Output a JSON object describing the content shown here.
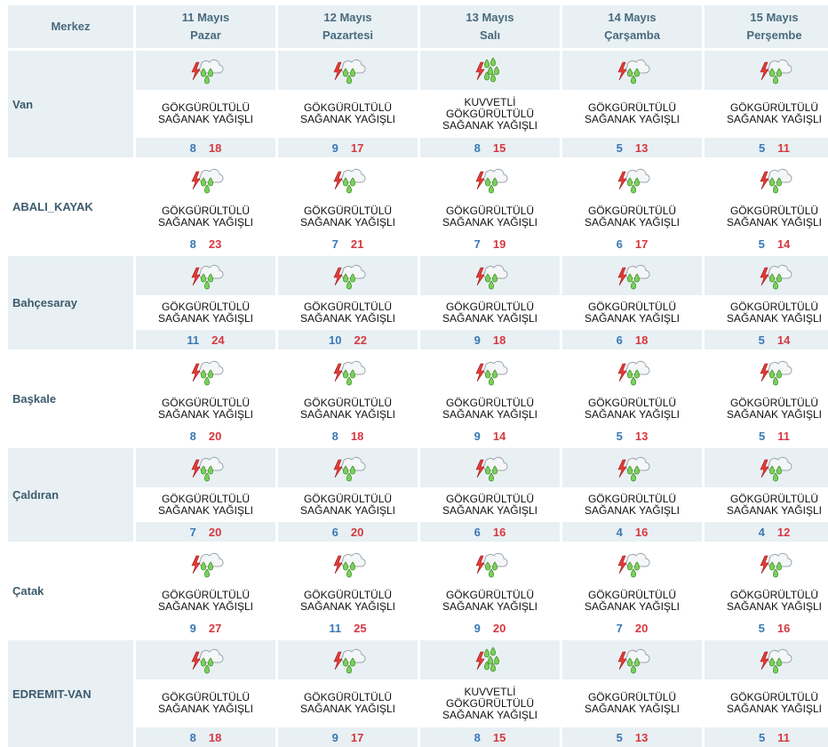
{
  "header": {
    "merkez_label": "Merkez",
    "days": [
      {
        "date": "11 Mayıs",
        "weekday": "Pazar"
      },
      {
        "date": "12 Mayıs",
        "weekday": "Pazartesi"
      },
      {
        "date": "13 Mayıs",
        "weekday": "Salı"
      },
      {
        "date": "14 Mayıs",
        "weekday": "Çarşamba"
      },
      {
        "date": "15 Mayıs",
        "weekday": "Perşembe"
      }
    ]
  },
  "colors": {
    "header_bg": "#e8f0f4",
    "min_temp": "#3a78b5",
    "max_temp": "#d6383f",
    "city_text": "#3d5b6e"
  },
  "rows": [
    {
      "city": "Van",
      "style": "tinted",
      "days": [
        {
          "icon": "thunder-rain-icon",
          "desc": [
            "GÖKGÜRÜLTÜLÜ",
            "SAĞANAK YAĞIŞLI"
          ],
          "min": "8",
          "max": "18"
        },
        {
          "icon": "thunder-rain-icon",
          "desc": [
            "GÖKGÜRÜLTÜLÜ",
            "SAĞANAK YAĞIŞLI"
          ],
          "min": "9",
          "max": "17"
        },
        {
          "icon": "heavy-thunder-rain-icon",
          "desc": [
            "KUVVETLİ",
            "GÖKGÜRÜLTÜLÜ",
            "SAĞANAK YAĞIŞLI"
          ],
          "min": "8",
          "max": "15"
        },
        {
          "icon": "thunder-rain-icon",
          "desc": [
            "GÖKGÜRÜLTÜLÜ",
            "SAĞANAK YAĞIŞLI"
          ],
          "min": "5",
          "max": "13"
        },
        {
          "icon": "thunder-rain-icon",
          "desc": [
            "GÖKGÜRÜLTÜLÜ",
            "SAĞANAK YAĞIŞLI"
          ],
          "min": "5",
          "max": "11"
        }
      ]
    },
    {
      "city": "ABALI_KAYAK",
      "style": "plain",
      "days": [
        {
          "icon": "thunder-rain-icon",
          "desc": [
            "GÖKGÜRÜLTÜLÜ",
            "SAĞANAK YAĞIŞLI"
          ],
          "min": "8",
          "max": "23"
        },
        {
          "icon": "thunder-rain-icon",
          "desc": [
            "GÖKGÜRÜLTÜLÜ",
            "SAĞANAK YAĞIŞLI"
          ],
          "min": "7",
          "max": "21"
        },
        {
          "icon": "thunder-rain-icon",
          "desc": [
            "GÖKGÜRÜLTÜLÜ",
            "SAĞANAK YAĞIŞLI"
          ],
          "min": "7",
          "max": "19"
        },
        {
          "icon": "thunder-rain-icon",
          "desc": [
            "GÖKGÜRÜLTÜLÜ",
            "SAĞANAK YAĞIŞLI"
          ],
          "min": "6",
          "max": "17"
        },
        {
          "icon": "thunder-rain-icon",
          "desc": [
            "GÖKGÜRÜLTÜLÜ",
            "SAĞANAK YAĞIŞLI"
          ],
          "min": "5",
          "max": "14"
        }
      ]
    },
    {
      "city": "Bahçesaray",
      "style": "tinted",
      "days": [
        {
          "icon": "thunder-rain-icon",
          "desc": [
            "GÖKGÜRÜLTÜLÜ",
            "SAĞANAK YAĞIŞLI"
          ],
          "min": "11",
          "max": "24"
        },
        {
          "icon": "thunder-rain-icon",
          "desc": [
            "GÖKGÜRÜLTÜLÜ",
            "SAĞANAK YAĞIŞLI"
          ],
          "min": "10",
          "max": "22"
        },
        {
          "icon": "thunder-rain-icon",
          "desc": [
            "GÖKGÜRÜLTÜLÜ",
            "SAĞANAK YAĞIŞLI"
          ],
          "min": "9",
          "max": "18"
        },
        {
          "icon": "thunder-rain-icon",
          "desc": [
            "GÖKGÜRÜLTÜLÜ",
            "SAĞANAK YAĞIŞLI"
          ],
          "min": "6",
          "max": "18"
        },
        {
          "icon": "thunder-rain-icon",
          "desc": [
            "GÖKGÜRÜLTÜLÜ",
            "SAĞANAK YAĞIŞLI"
          ],
          "min": "5",
          "max": "14"
        }
      ]
    },
    {
      "city": "Başkale",
      "style": "plain",
      "days": [
        {
          "icon": "thunder-rain-icon",
          "desc": [
            "GÖKGÜRÜLTÜLÜ",
            "SAĞANAK YAĞIŞLI"
          ],
          "min": "8",
          "max": "20"
        },
        {
          "icon": "thunder-rain-icon",
          "desc": [
            "GÖKGÜRÜLTÜLÜ",
            "SAĞANAK YAĞIŞLI"
          ],
          "min": "8",
          "max": "18"
        },
        {
          "icon": "thunder-rain-icon",
          "desc": [
            "GÖKGÜRÜLTÜLÜ",
            "SAĞANAK YAĞIŞLI"
          ],
          "min": "9",
          "max": "14"
        },
        {
          "icon": "thunder-rain-icon",
          "desc": [
            "GÖKGÜRÜLTÜLÜ",
            "SAĞANAK YAĞIŞLI"
          ],
          "min": "5",
          "max": "13"
        },
        {
          "icon": "thunder-rain-icon",
          "desc": [
            "GÖKGÜRÜLTÜLÜ",
            "SAĞANAK YAĞIŞLI"
          ],
          "min": "5",
          "max": "11"
        }
      ]
    },
    {
      "city": "Çaldıran",
      "style": "tinted",
      "days": [
        {
          "icon": "thunder-rain-icon",
          "desc": [
            "GÖKGÜRÜLTÜLÜ",
            "SAĞANAK YAĞIŞLI"
          ],
          "min": "7",
          "max": "20"
        },
        {
          "icon": "thunder-rain-icon",
          "desc": [
            "GÖKGÜRÜLTÜLÜ",
            "SAĞANAK YAĞIŞLI"
          ],
          "min": "6",
          "max": "20"
        },
        {
          "icon": "thunder-rain-icon",
          "desc": [
            "GÖKGÜRÜLTÜLÜ",
            "SAĞANAK YAĞIŞLI"
          ],
          "min": "6",
          "max": "16"
        },
        {
          "icon": "thunder-rain-icon",
          "desc": [
            "GÖKGÜRÜLTÜLÜ",
            "SAĞANAK YAĞIŞLI"
          ],
          "min": "4",
          "max": "16"
        },
        {
          "icon": "thunder-rain-icon",
          "desc": [
            "GÖKGÜRÜLTÜLÜ",
            "SAĞANAK YAĞIŞLI"
          ],
          "min": "4",
          "max": "12"
        }
      ]
    },
    {
      "city": "Çatak",
      "style": "plain",
      "days": [
        {
          "icon": "thunder-rain-icon",
          "desc": [
            "GÖKGÜRÜLTÜLÜ",
            "SAĞANAK YAĞIŞLI"
          ],
          "min": "9",
          "max": "27"
        },
        {
          "icon": "thunder-rain-icon",
          "desc": [
            "GÖKGÜRÜLTÜLÜ",
            "SAĞANAK YAĞIŞLI"
          ],
          "min": "11",
          "max": "25"
        },
        {
          "icon": "thunder-rain-icon",
          "desc": [
            "GÖKGÜRÜLTÜLÜ",
            "SAĞANAK YAĞIŞLI"
          ],
          "min": "9",
          "max": "20"
        },
        {
          "icon": "thunder-rain-icon",
          "desc": [
            "GÖKGÜRÜLTÜLÜ",
            "SAĞANAK YAĞIŞLI"
          ],
          "min": "7",
          "max": "20"
        },
        {
          "icon": "thunder-rain-icon",
          "desc": [
            "GÖKGÜRÜLTÜLÜ",
            "SAĞANAK YAĞIŞLI"
          ],
          "min": "5",
          "max": "16"
        }
      ]
    },
    {
      "city": "EDREMIT-VAN",
      "style": "tinted",
      "days": [
        {
          "icon": "thunder-rain-icon",
          "desc": [
            "GÖKGÜRÜLTÜLÜ",
            "SAĞANAK YAĞIŞLI"
          ],
          "min": "8",
          "max": "18"
        },
        {
          "icon": "thunder-rain-icon",
          "desc": [
            "GÖKGÜRÜLTÜLÜ",
            "SAĞANAK YAĞIŞLI"
          ],
          "min": "9",
          "max": "17"
        },
        {
          "icon": "heavy-thunder-rain-icon",
          "desc": [
            "KUVVETLİ",
            "GÖKGÜRÜLTÜLÜ",
            "SAĞANAK YAĞIŞLI"
          ],
          "min": "8",
          "max": "15"
        },
        {
          "icon": "thunder-rain-icon",
          "desc": [
            "GÖKGÜRÜLTÜLÜ",
            "SAĞANAK YAĞIŞLI"
          ],
          "min": "5",
          "max": "13"
        },
        {
          "icon": "thunder-rain-icon",
          "desc": [
            "GÖKGÜRÜLTÜLÜ",
            "SAĞANAK YAĞIŞLI"
          ],
          "min": "5",
          "max": "11"
        }
      ]
    }
  ]
}
